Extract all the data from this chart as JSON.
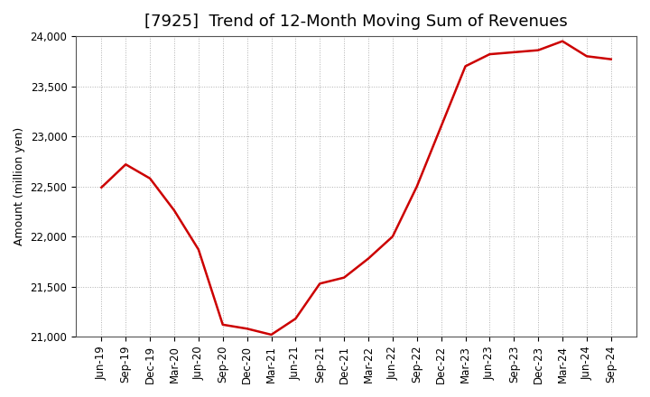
{
  "title": "[7925]  Trend of 12-Month Moving Sum of Revenues",
  "ylabel": "Amount (million yen)",
  "line_color": "#cc0000",
  "background_color": "#ffffff",
  "grid_color": "#b0b0b0",
  "x_labels": [
    "Jun-19",
    "Sep-19",
    "Dec-19",
    "Mar-20",
    "Jun-20",
    "Sep-20",
    "Dec-20",
    "Mar-21",
    "Jun-21",
    "Sep-21",
    "Dec-21",
    "Mar-22",
    "Jun-22",
    "Sep-22",
    "Dec-22",
    "Mar-23",
    "Jun-23",
    "Sep-23",
    "Dec-23",
    "Mar-24",
    "Jun-24",
    "Sep-24"
  ],
  "y_values": [
    22490,
    22720,
    22580,
    22260,
    21870,
    21120,
    21080,
    21020,
    21180,
    21530,
    21590,
    21780,
    22000,
    22500,
    23100,
    23700,
    23820,
    23840,
    23860,
    23950,
    23800,
    23770
  ],
  "ylim_min": 21000,
  "ylim_max": 24000,
  "yticks": [
    21000,
    21500,
    22000,
    22500,
    23000,
    23500,
    24000
  ],
  "title_fontsize": 13,
  "axis_fontsize": 9,
  "tick_fontsize": 8.5
}
